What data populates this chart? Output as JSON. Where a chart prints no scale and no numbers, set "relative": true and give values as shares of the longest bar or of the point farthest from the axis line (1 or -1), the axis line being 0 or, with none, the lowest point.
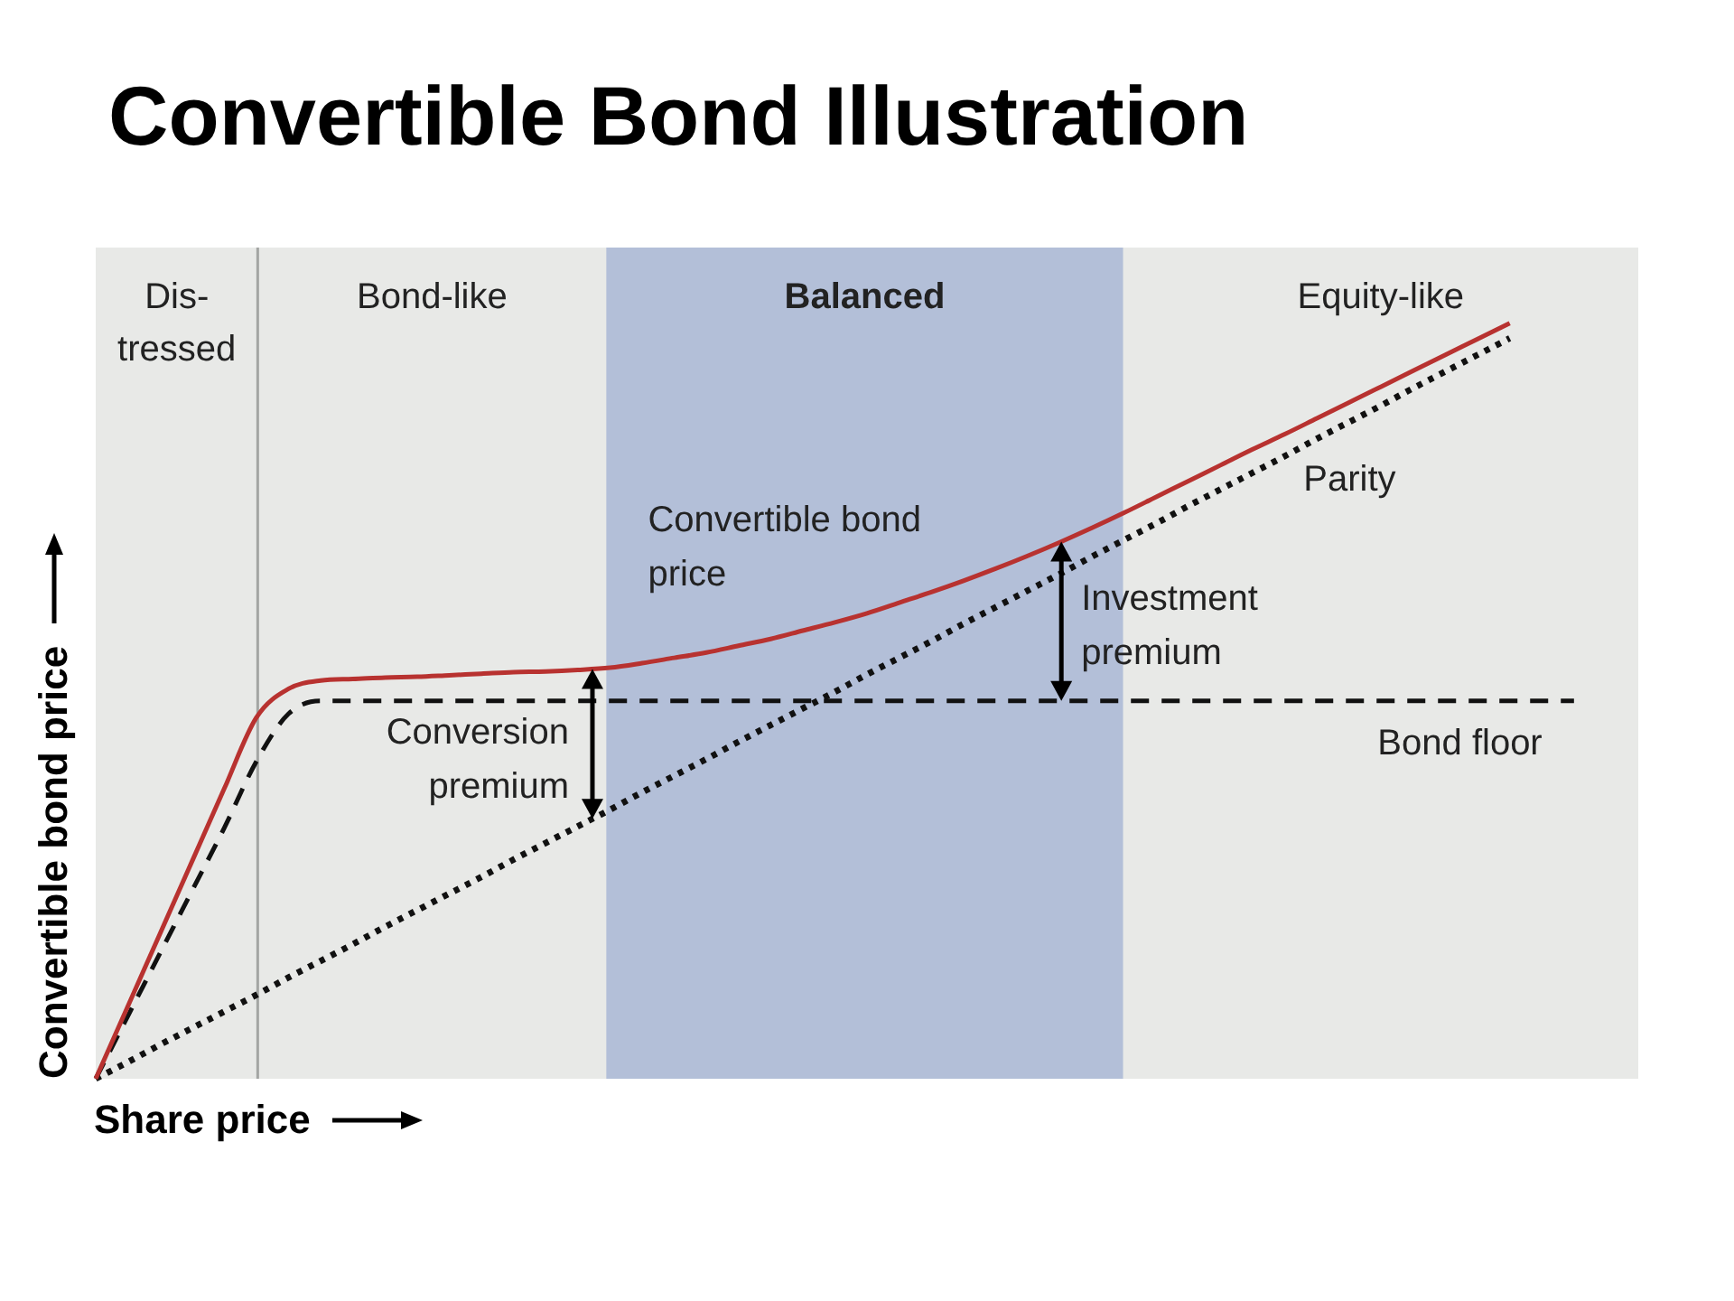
{
  "chart_data": {
    "type": "line",
    "title": "Convertible Bond Illustration",
    "xlabel": "Share price",
    "ylabel": "Convertible bond price",
    "relative": true,
    "categories": [
      null,
      null,
      null,
      null,
      null,
      null,
      null,
      null,
      null,
      null,
      null,
      null,
      null,
      null,
      null,
      null,
      null,
      null,
      null,
      null,
      null,
      null,
      null,
      null,
      null,
      null,
      null,
      null,
      null,
      null,
      null,
      null,
      null,
      null,
      null,
      null,
      null,
      null,
      null,
      null,
      null,
      null,
      null,
      null,
      null,
      null,
      null,
      null,
      null
    ],
    "series": [
      {
        "name": "Convertible bond price",
        "color": "#b83230",
        "line_style": "solid",
        "values": [
          0,
          0.096,
          0.192,
          0.288,
          0.384,
          0.478,
          0.516,
          0.527,
          0.529,
          0.531,
          0.532,
          0.534,
          0.536,
          0.538,
          0.539,
          0.541,
          0.544,
          0.55,
          0.557,
          0.564,
          0.573,
          0.582,
          0.593,
          0.604,
          0.616,
          0.63,
          0.644,
          0.659,
          0.675,
          0.692,
          0.71,
          0.729,
          0.749,
          0.77,
          0.791,
          0.812,
          0.833,
          0.853,
          0.874,
          0.895,
          0.916,
          0.937,
          0.958,
          0.979,
          1,
          null,
          null,
          null,
          null
        ]
      },
      {
        "name": "Bond floor",
        "color": "#111111",
        "line_style": "dashed",
        "values": [
          0,
          0.083,
          0.166,
          0.249,
          0.332,
          0.42,
          0.483,
          0.5,
          0.5,
          0.5,
          0.5,
          0.5,
          0.5,
          0.5,
          0.5,
          0.5,
          0.5,
          0.5,
          0.5,
          0.5,
          0.5,
          0.5,
          0.5,
          0.5,
          0.5,
          0.5,
          0.5,
          0.5,
          0.5,
          0.5,
          0.5,
          0.5,
          0.5,
          0.5,
          0.5,
          0.5,
          0.5,
          0.5,
          0.5,
          0.5,
          0.5,
          0.5,
          0.5,
          0.5,
          0.5,
          0.5,
          0.5,
          null,
          null
        ]
      },
      {
        "name": "Parity",
        "color": "#111111",
        "line_style": "dotted",
        "values": [
          0,
          0.022,
          0.045,
          0.067,
          0.089,
          0.111,
          0.134,
          0.156,
          0.178,
          0.201,
          0.223,
          0.245,
          0.267,
          0.29,
          0.312,
          0.334,
          0.356,
          0.379,
          0.401,
          0.423,
          0.446,
          0.468,
          0.49,
          0.512,
          0.535,
          0.557,
          0.579,
          0.602,
          0.624,
          0.646,
          0.668,
          0.691,
          0.713,
          0.735,
          0.758,
          0.78,
          0.802,
          0.824,
          0.847,
          0.869,
          0.891,
          0.914,
          0.936,
          0.958,
          0.98,
          null,
          null,
          null,
          null
        ]
      }
    ],
    "annotations": [
      "Dis-\ntressed",
      "Bond-like",
      "Balanced",
      "Equity-like",
      "Conversion premium",
      "Investment premium"
    ]
  }
}
